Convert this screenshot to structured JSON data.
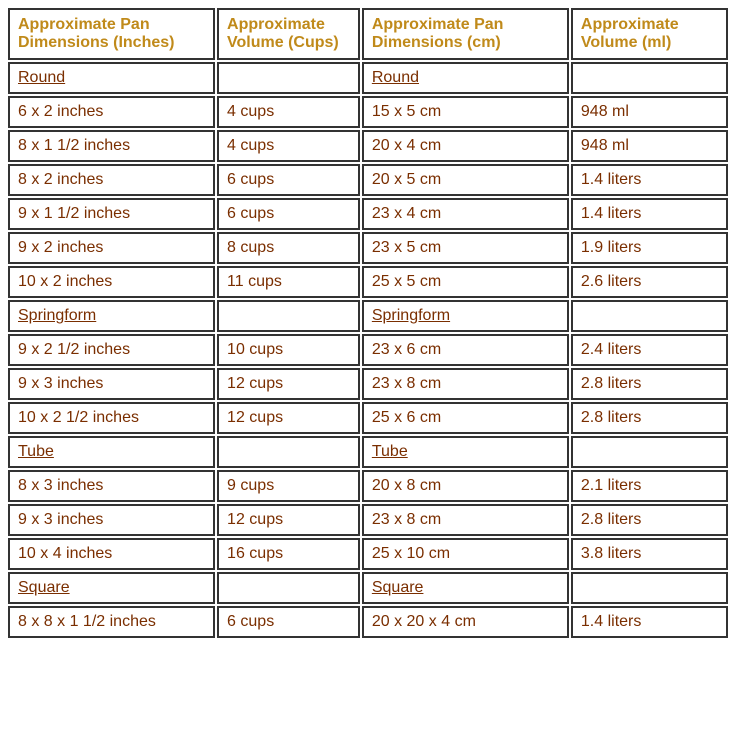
{
  "colors": {
    "header_text": "#c08a1a",
    "body_text": "#7a2e00",
    "border": "#333333",
    "background": "#ffffff"
  },
  "columns": [
    "Approximate Pan Dimensions (Inches)",
    "Approximate Volume (Cups)",
    "Approximate Pan Dimensions (cm)",
    "Approximate Volume (ml)"
  ],
  "rows": [
    {
      "type": "section",
      "cells": [
        "Round",
        "",
        "Round",
        ""
      ]
    },
    {
      "type": "data",
      "cells": [
        "6 x 2 inches",
        "4 cups",
        "15 x 5 cm",
        "948 ml"
      ]
    },
    {
      "type": "data",
      "cells": [
        "8 x 1 1/2 inches",
        "4 cups",
        "20 x 4 cm",
        "948 ml"
      ]
    },
    {
      "type": "data",
      "cells": [
        "8 x 2 inches",
        "6 cups",
        "20 x 5 cm",
        "1.4 liters"
      ]
    },
    {
      "type": "data",
      "cells": [
        "9 x 1 1/2 inches",
        "6 cups",
        "23 x 4 cm",
        "1.4 liters"
      ]
    },
    {
      "type": "data",
      "cells": [
        "9 x 2 inches",
        "8 cups",
        "23 x 5 cm",
        "1.9 liters"
      ]
    },
    {
      "type": "data",
      "cells": [
        "10 x 2 inches",
        "11 cups",
        "25 x 5 cm",
        "2.6 liters"
      ]
    },
    {
      "type": "section",
      "cells": [
        "Springform",
        "",
        "Springform",
        ""
      ]
    },
    {
      "type": "data",
      "cells": [
        "9 x 2 1/2 inches",
        "10 cups",
        "23 x 6 cm",
        "2.4 liters"
      ]
    },
    {
      "type": "data",
      "cells": [
        "9 x 3 inches",
        "12 cups",
        "23 x 8 cm",
        "2.8 liters"
      ]
    },
    {
      "type": "data",
      "cells": [
        "10 x 2 1/2 inches",
        "12 cups",
        "25 x 6 cm",
        "2.8 liters"
      ]
    },
    {
      "type": "section",
      "cells": [
        "Tube",
        "",
        "Tube",
        ""
      ]
    },
    {
      "type": "data",
      "cells": [
        "8 x 3 inches",
        "9 cups",
        "20 x 8 cm",
        "2.1 liters"
      ]
    },
    {
      "type": "data",
      "cells": [
        "9 x 3 inches",
        "12 cups",
        "23 x 8 cm",
        "2.8 liters"
      ]
    },
    {
      "type": "data",
      "cells": [
        "10 x 4 inches",
        "16 cups",
        "25 x 10 cm",
        "3.8 liters"
      ]
    },
    {
      "type": "section",
      "cells": [
        "Square",
        "",
        "Square",
        ""
      ]
    },
    {
      "type": "data",
      "cells": [
        "8 x 8 x 1 1/2 inches",
        "6 cups",
        "20 x 20 x 4 cm",
        "1.4 liters"
      ]
    }
  ]
}
